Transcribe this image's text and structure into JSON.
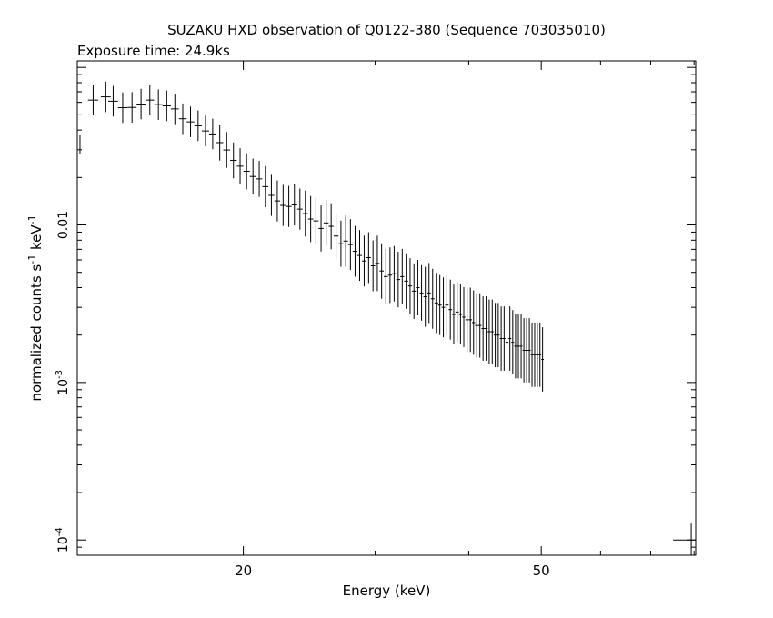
{
  "chart_data": {
    "type": "scatter",
    "title": "SUZAKU HXD observation of Q0122-380 (Sequence 703035010)",
    "subtitle": "Exposure time: 24.9ks",
    "xlabel": "Energy (keV)",
    "ylabel_main": "normalized counts s",
    "ylabel_sup1": "-1",
    "ylabel_mid": " keV",
    "ylabel_sup2": "-1",
    "xscale": "log",
    "yscale": "log",
    "xlim": [
      12.0,
      80.4
    ],
    "ylim": [
      8e-05,
      0.11
    ],
    "grid": false,
    "x_tick_labels": [
      {
        "value": 20,
        "label": "20"
      },
      {
        "value": 50,
        "label": "50"
      }
    ],
    "y_tick_labels": [
      {
        "value": 0.01,
        "mantissa": "0.01",
        "exp": ""
      },
      {
        "value": 0.001,
        "mantissa": "10",
        "exp": "-3"
      },
      {
        "value": 0.0001,
        "mantissa": "10",
        "exp": "-4"
      }
    ],
    "series": [
      {
        "points": [
          [
            12.1,
            0.0322,
            0.15
          ],
          [
            12.6,
            0.062,
            0.25
          ],
          [
            13.1,
            0.065,
            0.25
          ],
          [
            13.4,
            0.061,
            0.25
          ],
          [
            13.8,
            0.0555,
            0.25
          ],
          [
            14.2,
            0.0557,
            0.25
          ],
          [
            14.6,
            0.0585,
            0.25
          ],
          [
            15.0,
            0.062,
            0.25
          ],
          [
            15.4,
            0.058,
            0.25
          ],
          [
            15.8,
            0.057,
            0.25
          ],
          [
            16.2,
            0.0545,
            0.25
          ],
          [
            16.6,
            0.0472,
            0.25
          ],
          [
            17.0,
            0.0451,
            0.25
          ],
          [
            17.4,
            0.0426,
            0.25
          ],
          [
            17.8,
            0.0395,
            0.25
          ],
          [
            18.2,
            0.0378,
            0.25
          ],
          [
            18.6,
            0.0333,
            0.3
          ],
          [
            19.0,
            0.0299,
            0.3
          ],
          [
            19.4,
            0.0257,
            0.3
          ],
          [
            19.8,
            0.0236,
            0.3
          ],
          [
            20.2,
            0.0219,
            0.3
          ],
          [
            20.6,
            0.0203,
            0.3
          ],
          [
            21.0,
            0.0196,
            0.3
          ],
          [
            21.4,
            0.0175,
            0.35
          ],
          [
            21.8,
            0.0154,
            0.35
          ],
          [
            22.2,
            0.0142,
            0.35
          ],
          [
            22.6,
            0.0133,
            0.35
          ],
          [
            23.0,
            0.0131,
            0.35
          ],
          [
            23.4,
            0.0134,
            0.35
          ],
          [
            23.8,
            0.0126,
            0.35
          ],
          [
            24.2,
            0.0118,
            0.4
          ],
          [
            24.6,
            0.0109,
            0.4
          ],
          [
            25.0,
            0.0106,
            0.4
          ],
          [
            25.4,
            0.0095,
            0.4
          ],
          [
            25.8,
            0.0103,
            0.4
          ],
          [
            26.2,
            0.0098,
            0.4
          ],
          [
            26.6,
            0.0085,
            0.4
          ],
          [
            27.0,
            0.0076,
            0.4
          ],
          [
            27.4,
            0.0079,
            0.45
          ],
          [
            27.8,
            0.0075,
            0.45
          ],
          [
            28.2,
            0.0068,
            0.45
          ],
          [
            28.6,
            0.0064,
            0.45
          ],
          [
            29.0,
            0.0059,
            0.45
          ],
          [
            29.4,
            0.0062,
            0.45
          ],
          [
            29.8,
            0.0055,
            0.45
          ],
          [
            30.2,
            0.0057,
            0.5
          ],
          [
            30.6,
            0.0051,
            0.5
          ],
          [
            31.0,
            0.0047,
            0.5
          ],
          [
            31.4,
            0.0048,
            0.5
          ],
          [
            31.8,
            0.0049,
            0.5
          ],
          [
            32.2,
            0.0045,
            0.5
          ],
          [
            32.6,
            0.0047,
            0.5
          ],
          [
            33.0,
            0.0044,
            0.5
          ],
          [
            33.4,
            0.0041,
            0.5
          ],
          [
            33.8,
            0.0038,
            0.5
          ],
          [
            34.2,
            0.004,
            0.5
          ],
          [
            34.6,
            0.0037,
            0.5
          ],
          [
            35.0,
            0.0035,
            0.55
          ],
          [
            35.4,
            0.0037,
            0.55
          ],
          [
            35.8,
            0.0034,
            0.55
          ],
          [
            36.2,
            0.0032,
            0.55
          ],
          [
            36.6,
            0.0031,
            0.55
          ],
          [
            37.0,
            0.003,
            0.55
          ],
          [
            37.4,
            0.0031,
            0.55
          ],
          [
            37.8,
            0.0029,
            0.55
          ],
          [
            38.2,
            0.0027,
            0.55
          ],
          [
            38.6,
            0.0028,
            0.55
          ],
          [
            39.0,
            0.0027,
            0.55
          ],
          [
            39.4,
            0.0026,
            0.55
          ],
          [
            39.8,
            0.0025,
            0.6
          ],
          [
            40.2,
            0.0025,
            0.6
          ],
          [
            40.6,
            0.0024,
            0.6
          ],
          [
            41.0,
            0.0023,
            0.6
          ],
          [
            41.4,
            0.0023,
            0.6
          ],
          [
            41.8,
            0.0022,
            0.6
          ],
          [
            42.2,
            0.0022,
            0.6
          ],
          [
            42.6,
            0.0021,
            0.6
          ],
          [
            43.0,
            0.0021,
            0.6
          ],
          [
            43.4,
            0.002,
            0.6
          ],
          [
            43.8,
            0.002,
            0.6
          ],
          [
            44.2,
            0.0019,
            0.6
          ],
          [
            44.6,
            0.0019,
            0.6
          ],
          [
            45.0,
            0.0018,
            0.6
          ],
          [
            45.4,
            0.0019,
            0.6
          ],
          [
            45.8,
            0.0018,
            0.6
          ],
          [
            46.2,
            0.0017,
            0.6
          ],
          [
            46.6,
            0.0017,
            0.6
          ],
          [
            47.0,
            0.0017,
            0.6
          ],
          [
            47.4,
            0.0016,
            0.6
          ],
          [
            47.8,
            0.0016,
            0.6
          ],
          [
            48.2,
            0.0016,
            0.6
          ],
          [
            48.6,
            0.0015,
            0.6
          ],
          [
            49.0,
            0.0015,
            0.6
          ],
          [
            49.4,
            0.0015,
            0.6
          ],
          [
            49.8,
            0.0015,
            0.6
          ],
          [
            50.2,
            0.0014,
            0.6
          ]
        ]
      }
    ]
  }
}
